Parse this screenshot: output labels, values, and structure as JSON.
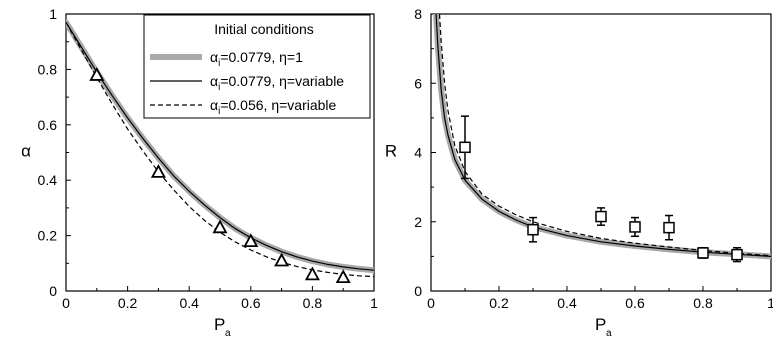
{
  "chart_data": [
    {
      "type": "line",
      "panel": "left",
      "xlabel": "P",
      "xlabel_sub": "a",
      "ylabel": "α",
      "xlim": [
        0,
        1
      ],
      "ylim": [
        0,
        1
      ],
      "xticks": [
        "0",
        "0.2",
        "0.4",
        "0.6",
        "0.8",
        "1"
      ],
      "yticks": [
        "0",
        "0.2",
        "0.4",
        "0.6",
        "0.8",
        "1"
      ],
      "legend": {
        "title": "Initial conditions",
        "placement": "top-right",
        "entries": [
          {
            "main": "α",
            "sub": "i",
            "rest": "=0.0779, η=1",
            "style": "thick-gray"
          },
          {
            "main": "α",
            "sub": "i",
            "rest": "=0.0779, η=variable",
            "style": "thin-solid"
          },
          {
            "main": "α",
            "sub": "i",
            "rest": "=0.056,   η=variable",
            "style": "dashed"
          }
        ]
      },
      "series": [
        {
          "style": "thick-gray",
          "x": [
            0,
            0.05,
            0.1,
            0.15,
            0.2,
            0.25,
            0.3,
            0.35,
            0.4,
            0.45,
            0.5,
            0.55,
            0.6,
            0.65,
            0.7,
            0.75,
            0.8,
            0.85,
            0.9,
            0.95,
            1
          ],
          "y": [
            0.97,
            0.88,
            0.79,
            0.705,
            0.625,
            0.55,
            0.48,
            0.415,
            0.36,
            0.31,
            0.265,
            0.225,
            0.192,
            0.165,
            0.142,
            0.123,
            0.108,
            0.096,
            0.087,
            0.08,
            0.075
          ]
        },
        {
          "style": "thin-solid",
          "x": [
            0,
            0.05,
            0.1,
            0.15,
            0.2,
            0.25,
            0.3,
            0.35,
            0.4,
            0.45,
            0.5,
            0.55,
            0.6,
            0.65,
            0.7,
            0.75,
            0.8,
            0.85,
            0.9,
            0.95,
            1
          ],
          "y": [
            0.97,
            0.88,
            0.79,
            0.705,
            0.625,
            0.55,
            0.48,
            0.415,
            0.36,
            0.31,
            0.265,
            0.225,
            0.192,
            0.165,
            0.142,
            0.123,
            0.108,
            0.096,
            0.087,
            0.08,
            0.075
          ]
        },
        {
          "style": "dashed",
          "x": [
            0,
            0.05,
            0.1,
            0.15,
            0.2,
            0.25,
            0.3,
            0.35,
            0.4,
            0.45,
            0.5,
            0.55,
            0.6,
            0.65,
            0.7,
            0.75,
            0.8,
            0.85,
            0.9,
            0.95,
            1
          ],
          "y": [
            0.97,
            0.87,
            0.77,
            0.675,
            0.585,
            0.505,
            0.43,
            0.365,
            0.305,
            0.255,
            0.212,
            0.177,
            0.148,
            0.124,
            0.104,
            0.088,
            0.076,
            0.067,
            0.06,
            0.055,
            0.052
          ]
        }
      ],
      "markers": {
        "shape": "triangle",
        "x": [
          0.1,
          0.3,
          0.5,
          0.6,
          0.7,
          0.8,
          0.9
        ],
        "y": [
          0.78,
          0.43,
          0.23,
          0.18,
          0.11,
          0.06,
          0.05
        ]
      }
    },
    {
      "type": "line",
      "panel": "right",
      "xlabel": "P",
      "xlabel_sub": "a",
      "ylabel": "R",
      "xlim": [
        0,
        1
      ],
      "ylim": [
        0,
        8
      ],
      "xticks": [
        "0",
        "0.2",
        "0.4",
        "0.6",
        "0.8",
        "1"
      ],
      "yticks": [
        "0",
        "2",
        "4",
        "6",
        "8"
      ],
      "series": [
        {
          "style": "thick-gray",
          "x": [
            0.015,
            0.02,
            0.03,
            0.04,
            0.05,
            0.07,
            0.1,
            0.15,
            0.2,
            0.25,
            0.3,
            0.4,
            0.5,
            0.6,
            0.7,
            0.8,
            0.9,
            1
          ],
          "y": [
            8.0,
            7.1,
            5.8,
            5.0,
            4.5,
            3.8,
            3.2,
            2.65,
            2.3,
            2.05,
            1.85,
            1.6,
            1.42,
            1.3,
            1.2,
            1.12,
            1.06,
            1.0
          ]
        },
        {
          "style": "thin-solid",
          "x": [
            0.015,
            0.02,
            0.03,
            0.04,
            0.05,
            0.07,
            0.1,
            0.15,
            0.2,
            0.25,
            0.3,
            0.4,
            0.5,
            0.6,
            0.7,
            0.8,
            0.9,
            1
          ],
          "y": [
            8.0,
            7.1,
            5.8,
            5.0,
            4.5,
            3.8,
            3.2,
            2.65,
            2.3,
            2.05,
            1.85,
            1.6,
            1.42,
            1.3,
            1.2,
            1.12,
            1.06,
            1.0
          ]
        },
        {
          "style": "dashed",
          "x": [
            0.025,
            0.03,
            0.04,
            0.05,
            0.07,
            0.1,
            0.15,
            0.2,
            0.25,
            0.3,
            0.4,
            0.5,
            0.6,
            0.7,
            0.8,
            0.9,
            1
          ],
          "y": [
            8.0,
            7.2,
            6.0,
            5.2,
            4.2,
            3.45,
            2.8,
            2.45,
            2.2,
            2.0,
            1.72,
            1.52,
            1.38,
            1.27,
            1.17,
            1.09,
            1.02
          ]
        }
      ],
      "markers": {
        "shape": "square",
        "x": [
          0.1,
          0.3,
          0.5,
          0.6,
          0.7,
          0.8,
          0.9
        ],
        "y": [
          4.15,
          1.77,
          2.15,
          1.85,
          1.83,
          1.1,
          1.05
        ],
        "err": [
          0.9,
          0.35,
          0.25,
          0.27,
          0.35,
          0.15,
          0.2
        ]
      }
    }
  ]
}
